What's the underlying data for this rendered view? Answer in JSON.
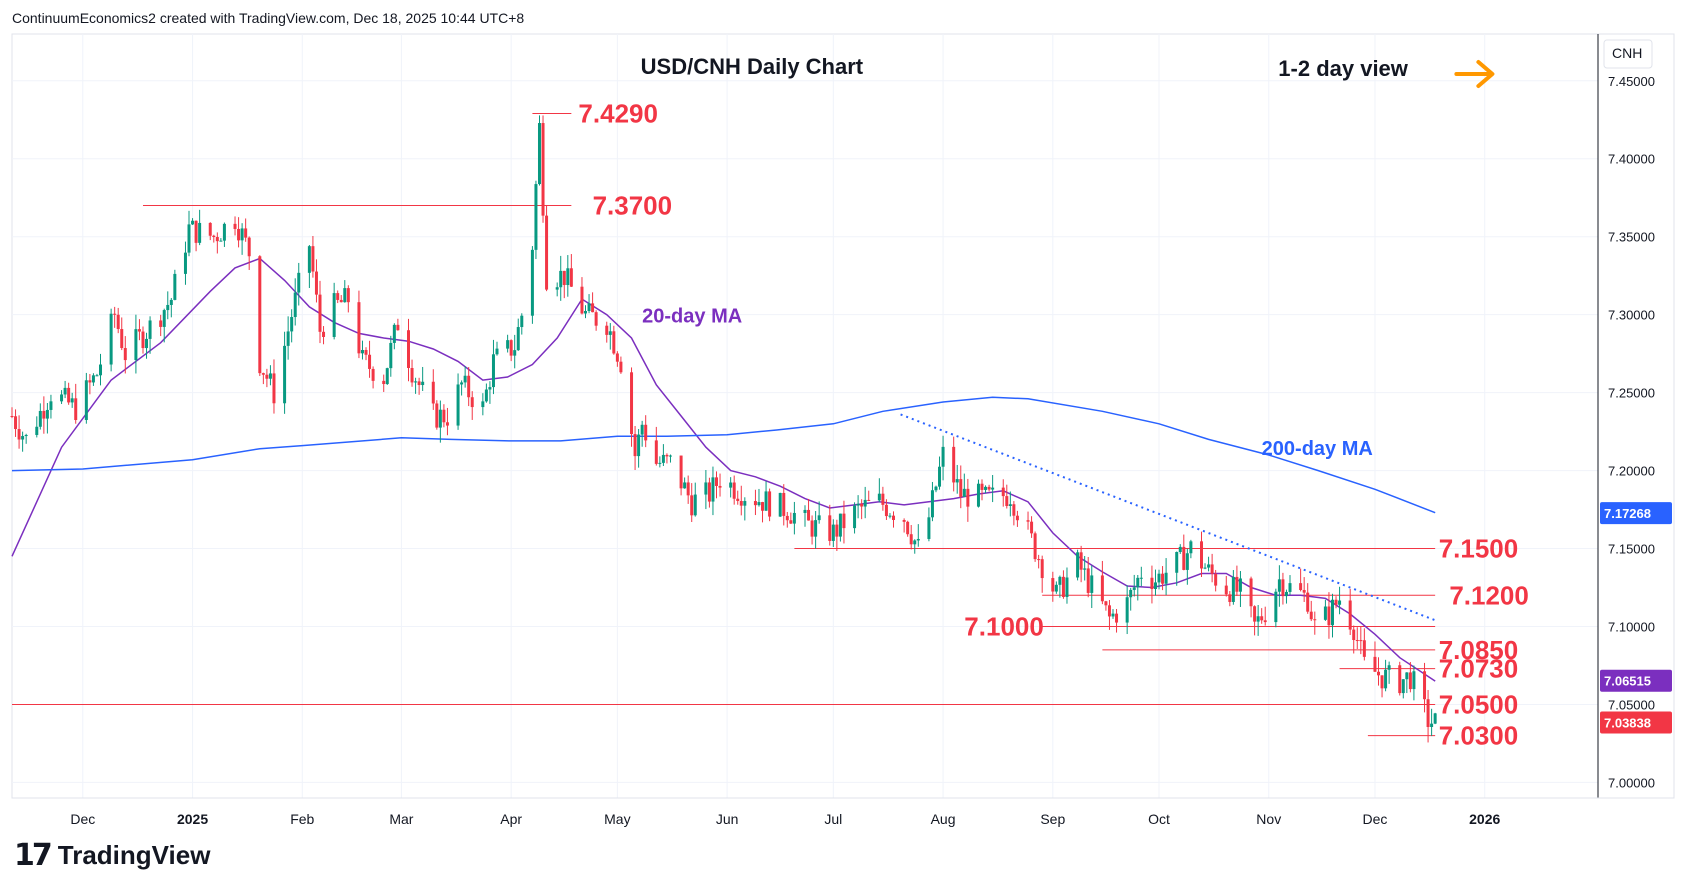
{
  "header": {
    "credit": "ContinuumEconomics2 created with TradingView.com, Dec 18, 2025 10:44 UTC+8"
  },
  "brand": {
    "logo_mark": "17",
    "logo_text": "TradingView"
  },
  "colors": {
    "up": "#089981",
    "down": "#f23645",
    "ma20": "#7b2fbf",
    "ma200": "#2962ff",
    "level": "#f23645",
    "arrow": "#ff9800"
  },
  "chart_data": {
    "type": "candlestick",
    "title": "USD/CNH Daily Chart",
    "annotation": "1-2 day view",
    "currency_label": "CNH",
    "ylim": [
      6.99,
      7.48
    ],
    "y_ticks": [
      "7.45000",
      "7.40000",
      "7.35000",
      "7.30000",
      "7.25000",
      "7.20000",
      "7.15000",
      "7.10000",
      "7.05000",
      "7.00000"
    ],
    "x_ticks": [
      {
        "label": "Dec",
        "date": "2024-12-01"
      },
      {
        "label": "2025",
        "date": "2025-01-01"
      },
      {
        "label": "Feb",
        "date": "2025-02-01"
      },
      {
        "label": "Mar",
        "date": "2025-03-01"
      },
      {
        "label": "Apr",
        "date": "2025-04-01"
      },
      {
        "label": "May",
        "date": "2025-05-01"
      },
      {
        "label": "Jun",
        "date": "2025-06-01"
      },
      {
        "label": "Jul",
        "date": "2025-07-01"
      },
      {
        "label": "Aug",
        "date": "2025-08-01"
      },
      {
        "label": "Sep",
        "date": "2025-09-01"
      },
      {
        "label": "Oct",
        "date": "2025-10-01"
      },
      {
        "label": "Nov",
        "date": "2025-11-01"
      },
      {
        "label": "Dec",
        "date": "2025-12-01"
      },
      {
        "label": "2026",
        "date": "2026-01-01"
      }
    ],
    "xlim": [
      "2024-11-11",
      "2026-02-02"
    ],
    "levels": [
      {
        "label": "7.4290",
        "value": 7.429,
        "from": "2025-04-07",
        "to": "2025-04-18",
        "label_date": "2025-04-20"
      },
      {
        "label": "7.3700",
        "value": 7.37,
        "from": "2024-12-18",
        "to": "2025-04-18",
        "label_date": "2025-04-24"
      },
      {
        "label": "7.1500",
        "value": 7.15,
        "from": "2025-06-20",
        "to": "2025-12-18",
        "label_date": "2025-12-19"
      },
      {
        "label": "7.1200",
        "value": 7.12,
        "from": "2025-08-29",
        "to": "2025-12-18",
        "label_date": "2025-12-22"
      },
      {
        "label": "7.1000",
        "value": 7.1,
        "from": "2025-08-29",
        "to": "2025-12-18",
        "label_date": "2025-08-07"
      },
      {
        "label": "7.0850",
        "value": 7.085,
        "from": "2025-09-15",
        "to": "2025-12-18",
        "label_date": "2025-12-19"
      },
      {
        "label": "7.0730",
        "value": 7.073,
        "from": "2025-11-21",
        "to": "2025-12-18",
        "label_date": "2025-12-19"
      },
      {
        "label": "7.0500",
        "value": 7.05,
        "from": "2024-11-11",
        "to": "2025-12-18",
        "label_date": "2025-12-19"
      },
      {
        "label": "7.0300",
        "value": 7.03,
        "from": "2025-11-29",
        "to": "2025-12-18",
        "label_date": "2025-12-19"
      }
    ],
    "trendline": {
      "start": {
        "date": "2025-07-20",
        "value": 7.236
      },
      "end": {
        "date": "2025-12-18",
        "value": 7.104
      }
    },
    "series": [
      {
        "name": "20-day MA",
        "points": [
          [
            "2024-11-11",
            7.145
          ],
          [
            "2024-11-25",
            7.215
          ],
          [
            "2024-12-09",
            7.258
          ],
          [
            "2024-12-23",
            7.282
          ],
          [
            "2025-01-06",
            7.315
          ],
          [
            "2025-01-13",
            7.33
          ],
          [
            "2025-01-20",
            7.336
          ],
          [
            "2025-01-27",
            7.322
          ],
          [
            "2025-02-03",
            7.305
          ],
          [
            "2025-02-10",
            7.295
          ],
          [
            "2025-02-17",
            7.288
          ],
          [
            "2025-02-24",
            7.285
          ],
          [
            "2025-03-03",
            7.283
          ],
          [
            "2025-03-10",
            7.278
          ],
          [
            "2025-03-17",
            7.27
          ],
          [
            "2025-03-24",
            7.258
          ],
          [
            "2025-03-31",
            7.26
          ],
          [
            "2025-04-07",
            7.268
          ],
          [
            "2025-04-14",
            7.285
          ],
          [
            "2025-04-21",
            7.31
          ],
          [
            "2025-04-28",
            7.3
          ],
          [
            "2025-05-05",
            7.285
          ],
          [
            "2025-05-12",
            7.255
          ],
          [
            "2025-05-19",
            7.235
          ],
          [
            "2025-05-26",
            7.215
          ],
          [
            "2025-06-02",
            7.2
          ],
          [
            "2025-06-09",
            7.196
          ],
          [
            "2025-06-16",
            7.19
          ],
          [
            "2025-06-23",
            7.182
          ],
          [
            "2025-06-30",
            7.176
          ],
          [
            "2025-07-07",
            7.178
          ],
          [
            "2025-07-14",
            7.18
          ],
          [
            "2025-07-21",
            7.178
          ],
          [
            "2025-07-28",
            7.18
          ],
          [
            "2025-08-04",
            7.182
          ],
          [
            "2025-08-11",
            7.185
          ],
          [
            "2025-08-18",
            7.187
          ],
          [
            "2025-08-25",
            7.18
          ],
          [
            "2025-09-01",
            7.16
          ],
          [
            "2025-09-08",
            7.145
          ],
          [
            "2025-09-15",
            7.135
          ],
          [
            "2025-09-22",
            7.126
          ],
          [
            "2025-09-29",
            7.125
          ],
          [
            "2025-10-06",
            7.128
          ],
          [
            "2025-10-13",
            7.134
          ],
          [
            "2025-10-20",
            7.134
          ],
          [
            "2025-10-27",
            7.125
          ],
          [
            "2025-11-03",
            7.12
          ],
          [
            "2025-11-10",
            7.12
          ],
          [
            "2025-11-17",
            7.118
          ],
          [
            "2025-11-24",
            7.108
          ],
          [
            "2025-12-01",
            7.095
          ],
          [
            "2025-12-08",
            7.08
          ],
          [
            "2025-12-18",
            7.065
          ]
        ]
      },
      {
        "name": "200-day MA",
        "points": [
          [
            "2024-11-11",
            7.2
          ],
          [
            "2024-12-01",
            7.201
          ],
          [
            "2025-01-01",
            7.207
          ],
          [
            "2025-01-20",
            7.214
          ],
          [
            "2025-02-01",
            7.216
          ],
          [
            "2025-03-01",
            7.221
          ],
          [
            "2025-03-15",
            7.22
          ],
          [
            "2025-04-01",
            7.219
          ],
          [
            "2025-04-15",
            7.219
          ],
          [
            "2025-05-01",
            7.222
          ],
          [
            "2025-05-15",
            7.222
          ],
          [
            "2025-06-01",
            7.223
          ],
          [
            "2025-06-15",
            7.226
          ],
          [
            "2025-07-01",
            7.23
          ],
          [
            "2025-07-15",
            7.238
          ],
          [
            "2025-08-01",
            7.244
          ],
          [
            "2025-08-15",
            7.247
          ],
          [
            "2025-08-25",
            7.246
          ],
          [
            "2025-09-15",
            7.238
          ],
          [
            "2025-10-01",
            7.23
          ],
          [
            "2025-10-15",
            7.22
          ],
          [
            "2025-11-01",
            7.21
          ],
          [
            "2025-11-15",
            7.2
          ],
          [
            "2025-12-01",
            7.188
          ],
          [
            "2025-12-18",
            7.173
          ]
        ]
      }
    ],
    "price_tags": [
      {
        "label": "7.17268",
        "value": 7.1727,
        "color": "#2962ff"
      },
      {
        "label": "7.06515",
        "value": 7.0652,
        "color": "#7b2fbf"
      },
      {
        "label": "7.03838",
        "value": 7.0384,
        "color": "#f23645"
      }
    ],
    "ohlc_anchors": [
      [
        "2024-11-11",
        7.235
      ],
      [
        "2024-11-15",
        7.22
      ],
      [
        "2024-11-22",
        7.25
      ],
      [
        "2024-11-29",
        7.24
      ],
      [
        "2024-12-05",
        7.262
      ],
      [
        "2024-12-10",
        7.3
      ],
      [
        "2024-12-13",
        7.275
      ],
      [
        "2024-12-20",
        7.292
      ],
      [
        "2024-12-26",
        7.31
      ],
      [
        "2024-12-31",
        7.355
      ],
      [
        "2025-01-07",
        7.35
      ],
      [
        "2025-01-13",
        7.362
      ],
      [
        "2025-01-17",
        7.34
      ],
      [
        "2025-01-20",
        7.27
      ],
      [
        "2025-01-24",
        7.25
      ],
      [
        "2025-01-29",
        7.3
      ],
      [
        "2025-02-03",
        7.345
      ],
      [
        "2025-02-06",
        7.29
      ],
      [
        "2025-02-10",
        7.305
      ],
      [
        "2025-02-14",
        7.31
      ],
      [
        "2025-02-18",
        7.27
      ],
      [
        "2025-02-24",
        7.26
      ],
      [
        "2025-02-28",
        7.295
      ],
      [
        "2025-03-04",
        7.265
      ],
      [
        "2025-03-10",
        7.235
      ],
      [
        "2025-03-14",
        7.235
      ],
      [
        "2025-03-18",
        7.255
      ],
      [
        "2025-03-24",
        7.24
      ],
      [
        "2025-03-27",
        7.27
      ],
      [
        "2025-04-02",
        7.28
      ],
      [
        "2025-04-04",
        7.3
      ],
      [
        "2025-04-07",
        7.345
      ],
      [
        "2025-04-09",
        7.42
      ],
      [
        "2025-04-11",
        7.325
      ],
      [
        "2025-04-16",
        7.325
      ],
      [
        "2025-04-22",
        7.3
      ],
      [
        "2025-04-28",
        7.295
      ],
      [
        "2025-05-02",
        7.27
      ],
      [
        "2025-05-06",
        7.21
      ],
      [
        "2025-05-08",
        7.23
      ],
      [
        "2025-05-12",
        7.205
      ],
      [
        "2025-05-16",
        7.205
      ],
      [
        "2025-05-22",
        7.18
      ],
      [
        "2025-05-27",
        7.185
      ],
      [
        "2025-05-30",
        7.195
      ],
      [
        "2025-06-06",
        7.185
      ],
      [
        "2025-06-12",
        7.18
      ],
      [
        "2025-06-18",
        7.175
      ],
      [
        "2025-06-24",
        7.165
      ],
      [
        "2025-07-01",
        7.16
      ],
      [
        "2025-07-08",
        7.175
      ],
      [
        "2025-07-14",
        7.18
      ],
      [
        "2025-07-21",
        7.17
      ],
      [
        "2025-07-25",
        7.15
      ],
      [
        "2025-07-28",
        7.17
      ],
      [
        "2025-08-01",
        7.21
      ],
      [
        "2025-08-06",
        7.185
      ],
      [
        "2025-08-13",
        7.182
      ],
      [
        "2025-08-20",
        7.185
      ],
      [
        "2025-08-25",
        7.16
      ],
      [
        "2025-08-29",
        7.14
      ],
      [
        "2025-09-02",
        7.12
      ],
      [
        "2025-09-08",
        7.14
      ],
      [
        "2025-09-12",
        7.125
      ],
      [
        "2025-09-17",
        7.105
      ],
      [
        "2025-09-22",
        7.115
      ],
      [
        "2025-09-26",
        7.135
      ],
      [
        "2025-09-30",
        7.13
      ],
      [
        "2025-10-06",
        7.14
      ],
      [
        "2025-10-10",
        7.15
      ],
      [
        "2025-10-15",
        7.135
      ],
      [
        "2025-10-20",
        7.125
      ],
      [
        "2025-10-24",
        7.122
      ],
      [
        "2025-10-28",
        7.1
      ],
      [
        "2025-10-31",
        7.11
      ],
      [
        "2025-11-04",
        7.13
      ],
      [
        "2025-11-07",
        7.125
      ],
      [
        "2025-11-12",
        7.118
      ],
      [
        "2025-11-14",
        7.1
      ],
      [
        "2025-11-18",
        7.108
      ],
      [
        "2025-11-21",
        7.118
      ],
      [
        "2025-11-25",
        7.1
      ],
      [
        "2025-11-28",
        7.075
      ],
      [
        "2025-12-03",
        7.068
      ],
      [
        "2025-12-08",
        7.065
      ],
      [
        "2025-12-11",
        7.068
      ],
      [
        "2025-12-14",
        7.052
      ],
      [
        "2025-12-16",
        7.04
      ],
      [
        "2025-12-18",
        7.038
      ]
    ]
  }
}
